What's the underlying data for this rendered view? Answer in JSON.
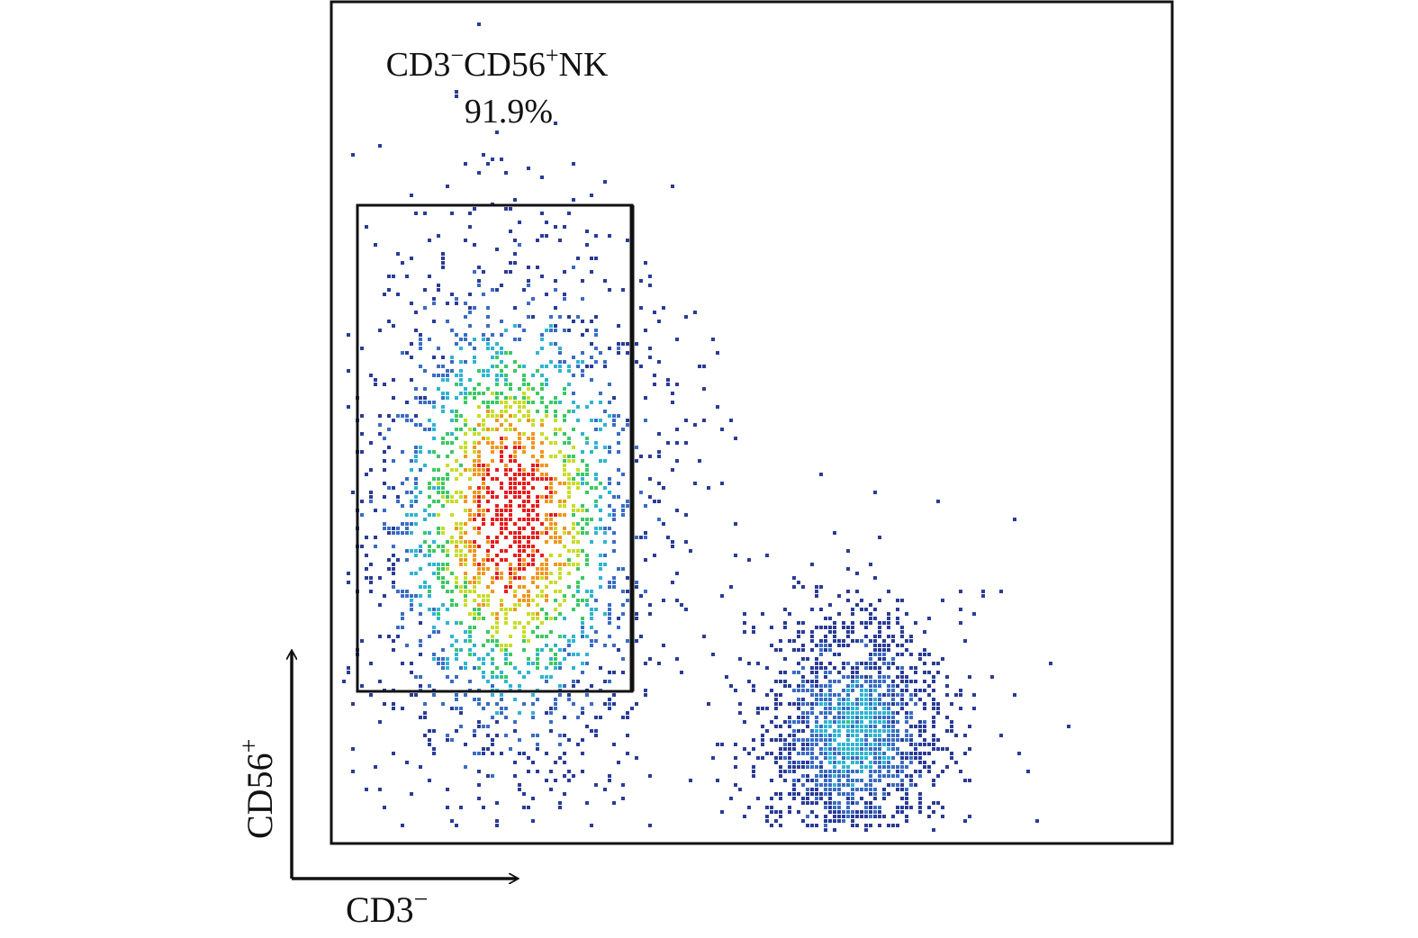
{
  "chart_data": {
    "type": "scatter",
    "subtype": "flow-cytometry-density-dot-plot",
    "gate": {
      "label_main": "CD3",
      "label_main_sup": "−",
      "label_second": "CD56",
      "label_second_sup": "+",
      "label_suffix": "NK",
      "percentage": "91.9%",
      "shape": "rectangle"
    },
    "xlabel": {
      "text": "CD3",
      "sup": "−"
    },
    "ylabel": {
      "text": "CD56",
      "sup": "+"
    },
    "populations": [
      {
        "name": "",
        "gated": true,
        "center_x": 0.21,
        "center_y": 0.61,
        "spread_x": 0.085,
        "spread_y": 0.155,
        "relative_count": 0.919
      },
      {
        "name": "",
        "gated": false,
        "center_x": 0.62,
        "center_y": 0.87,
        "spread_x": 0.055,
        "spread_y": 0.075,
        "relative_count": 0.081
      }
    ],
    "colorscale": [
      "#2a3c96",
      "#3a6cc4",
      "#30b4d2",
      "#3cc864",
      "#c8dc28",
      "#f0961e",
      "#e61e1e"
    ],
    "grid": false,
    "legend": "none"
  }
}
